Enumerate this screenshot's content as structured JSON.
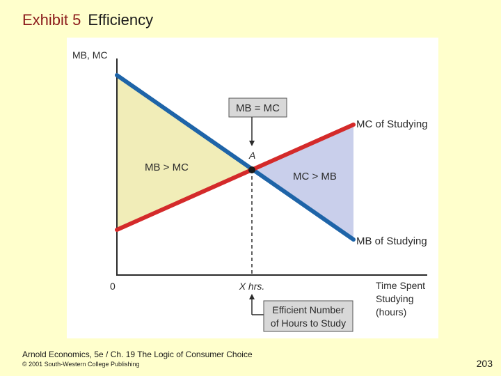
{
  "slide": {
    "title_lead": "Exhibit 5",
    "title_main": "Efficiency",
    "citation": "Arnold Economics, 5e / Ch. 19 The Logic of Consumer Choice",
    "copyright": "© 2001 South-Western College Publishing",
    "page_number": "203"
  },
  "diagram": {
    "y_axis_label": "MB, MC",
    "origin_label": "0",
    "x_point_label": "X hrs.",
    "x_axis_label_lines": [
      "Time Spent",
      "Studying",
      "(hours)"
    ],
    "equilibrium_box": "MB = MC",
    "point_label": "A",
    "region_left": "MB > MC",
    "region_right": "MC > MB",
    "mc_curve_label": "MC of Studying",
    "mb_curve_label": "MB of Studying",
    "efficient_box_lines": [
      "Efficient Number",
      "of Hours to Study"
    ]
  },
  "colors": {
    "background": "#FFFFCC",
    "title_accent": "#8B1A1A",
    "mb_line": "#1E64A8",
    "mc_line": "#D42A2A",
    "region_left_fill": "#F1EDB8",
    "region_right_fill": "#C9CFEB",
    "box_fill": "#D8D8D8"
  }
}
